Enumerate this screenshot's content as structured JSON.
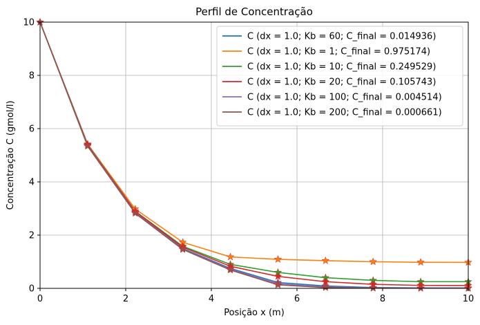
{
  "chart_data": {
    "type": "line",
    "title": "Perfil de Concentração",
    "xlabel": "Posição x (m)",
    "ylabel": "Concentração C (gmol/l)",
    "xlim": [
      0,
      10
    ],
    "ylim": [
      0,
      10
    ],
    "xticks": [
      "0",
      "2",
      "4",
      "6",
      "8",
      "10"
    ],
    "yticks": [
      "0",
      "2",
      "4",
      "6",
      "8",
      "10"
    ],
    "grid": true,
    "legend_position": "top-right",
    "marker": "star",
    "x": [
      0,
      1.111,
      2.222,
      3.333,
      4.444,
      5.556,
      6.667,
      7.778,
      8.889,
      10
    ],
    "series": [
      {
        "name": "C (dx = 1.0; Kb = 60; C_final = 0.014936)",
        "color": "#1f77b4",
        "values": [
          10,
          5.38,
          2.86,
          1.5,
          0.75,
          0.22,
          0.09,
          0.03,
          0.015,
          0.015
        ]
      },
      {
        "name": "C (dx = 1.0; Kb = 1; C_final = 0.975174)",
        "color": "#ff7f0e",
        "values": [
          10,
          5.42,
          2.98,
          1.73,
          1.18,
          1.09,
          1.04,
          1.0,
          0.98,
          0.975
        ]
      },
      {
        "name": "C (dx = 1.0; Kb = 10; C_final = 0.249529)",
        "color": "#2ca02c",
        "values": [
          10,
          5.4,
          2.9,
          1.58,
          0.9,
          0.6,
          0.4,
          0.3,
          0.25,
          0.25
        ]
      },
      {
        "name": "C (dx = 1.0; Kb = 20; C_final = 0.105743)",
        "color": "#d62728",
        "values": [
          10,
          5.39,
          2.89,
          1.55,
          0.83,
          0.45,
          0.25,
          0.15,
          0.11,
          0.106
        ]
      },
      {
        "name": "C (dx = 1.0; Kb = 100; C_final = 0.004514)",
        "color": "#9467bd",
        "values": [
          10,
          5.36,
          2.84,
          1.48,
          0.72,
          0.17,
          0.05,
          0.015,
          0.005,
          0.0045
        ]
      },
      {
        "name": "C (dx = 1.0; Kb = 200; C_final = 0.000661)",
        "color": "#8c564b",
        "values": [
          10,
          5.34,
          2.82,
          1.46,
          0.69,
          0.13,
          0.03,
          0.005,
          0.001,
          0.0007
        ]
      }
    ]
  }
}
